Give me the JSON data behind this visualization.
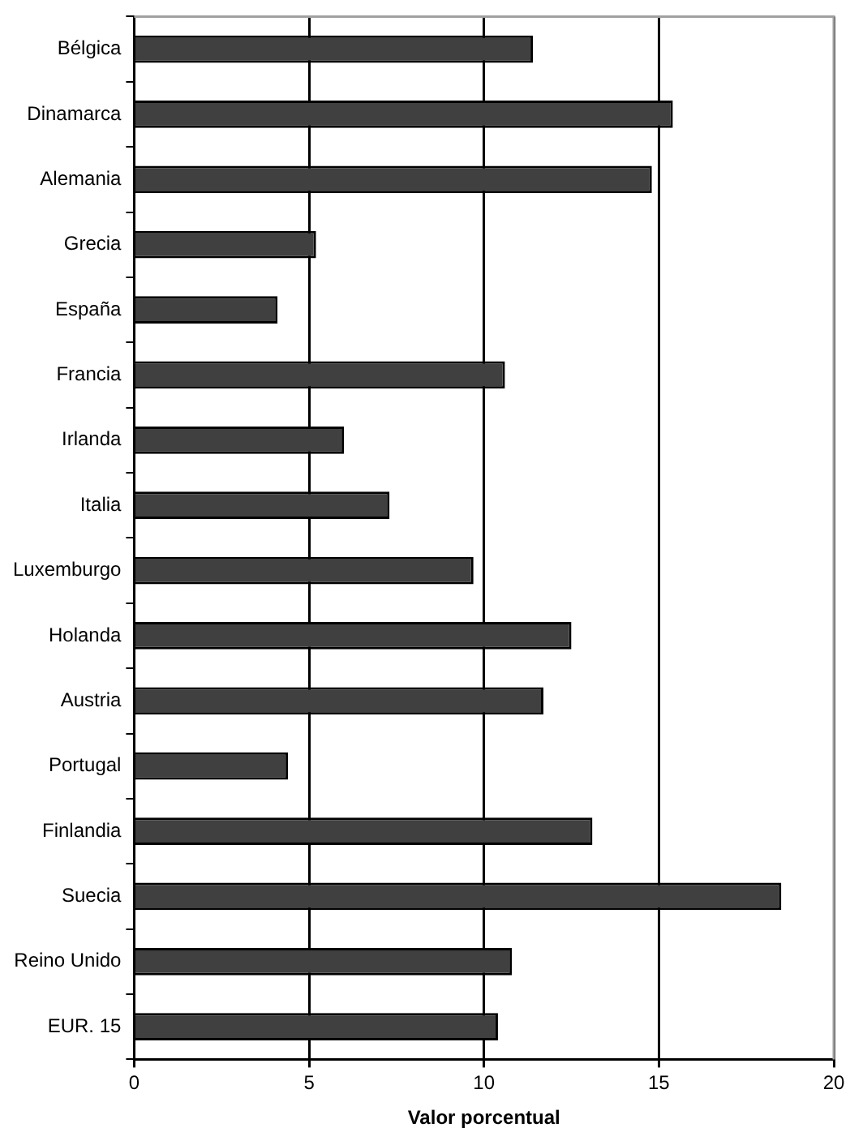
{
  "chart_data": {
    "type": "bar",
    "orientation": "horizontal",
    "xlabel": "Valor porcentual",
    "categories": [
      "Bélgica",
      "Dinamarca",
      "Alemania",
      "Grecia",
      "España",
      "Francia",
      "Irlanda",
      "Italia",
      "Luxemburgo",
      "Holanda",
      "Austria",
      "Portugal",
      "Finlandia",
      "Suecia",
      "Reino Unido",
      "EUR. 15"
    ],
    "values": [
      11.4,
      15.4,
      14.8,
      5.2,
      4.1,
      10.6,
      6.0,
      7.3,
      9.7,
      12.5,
      11.7,
      4.4,
      13.1,
      18.5,
      10.8,
      10.4
    ],
    "color": "#404040",
    "xlim": [
      0,
      20
    ],
    "xticks": [
      0,
      5,
      10,
      15,
      20
    ],
    "grid": "x",
    "legend": false
  }
}
